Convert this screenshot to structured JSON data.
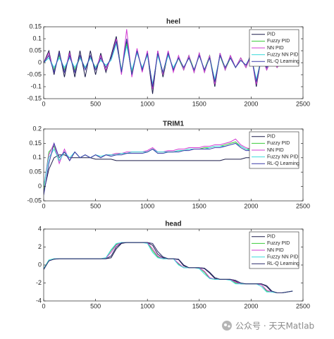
{
  "chart_data": [
    {
      "type": "line",
      "title": "heel",
      "legend": "upper right",
      "grid": false,
      "x": [
        0,
        50,
        100,
        150,
        200,
        250,
        300,
        350,
        400,
        450,
        500,
        550,
        600,
        650,
        700,
        750,
        800,
        850,
        900,
        950,
        1000,
        1050,
        1100,
        1150,
        1200,
        1250,
        1300,
        1350,
        1400,
        1450,
        1500,
        1550,
        1600,
        1650,
        1700,
        1750,
        1800,
        1850,
        1900,
        1950,
        2000,
        2050,
        2100,
        2150,
        2200,
        2250,
        2300,
        2350,
        2400
      ],
      "xlim": [
        0,
        2500
      ],
      "xticks": [
        0,
        500,
        1000,
        1500,
        2000,
        2500
      ],
      "ylim": [
        -0.15,
        0.15
      ],
      "yticks": [
        -0.15,
        -0.1,
        -0.05,
        0,
        0.05,
        0.1,
        0.15
      ],
      "series": [
        {
          "name": "PID",
          "color": "#1c1c4a",
          "values": [
            0,
            0.05,
            -0.05,
            0.05,
            -0.06,
            0.05,
            -0.06,
            0.05,
            -0.06,
            0.05,
            -0.05,
            0.04,
            -0.04,
            0.03,
            0.11,
            -0.04,
            0.09,
            -0.05,
            0.05,
            -0.03,
            0.04,
            -0.13,
            0.05,
            -0.06,
            0.04,
            -0.03,
            0.02,
            -0.03,
            0.03,
            -0.04,
            0.04,
            -0.04,
            0.03,
            -0.1,
            0.04,
            -0.03,
            0.03,
            -0.02,
            0.02,
            -0.02,
            0.04,
            -0.1,
            0.03,
            -0.03,
            0.02,
            -0.02,
            0.01,
            -0.01,
            0
          ]
        },
        {
          "name": "Fuzzy PID",
          "color": "#3ccc3c",
          "values": [
            0,
            0.03,
            -0.03,
            0.03,
            -0.03,
            0.03,
            -0.03,
            0.02,
            -0.02,
            0.02,
            -0.02,
            0.02,
            -0.02,
            0.02,
            0.09,
            -0.03,
            0.08,
            -0.04,
            0.05,
            -0.03,
            0.04,
            -0.1,
            0.04,
            -0.05,
            0.04,
            -0.03,
            0.02,
            -0.03,
            0.03,
            -0.03,
            0.03,
            -0.03,
            0.03,
            -0.08,
            0.03,
            -0.03,
            0.02,
            -0.02,
            0.02,
            -0.02,
            0.03,
            -0.08,
            0.03,
            -0.02,
            0.02,
            -0.02,
            0.01,
            -0.01,
            0
          ]
        },
        {
          "name": "NN PID",
          "color": "#d23cd2",
          "values": [
            0,
            0.04,
            -0.04,
            0.04,
            -0.04,
            0.04,
            -0.04,
            0.03,
            -0.03,
            0.03,
            -0.03,
            0.03,
            -0.03,
            0.02,
            0.1,
            -0.05,
            0.14,
            -0.06,
            0.06,
            -0.04,
            0.05,
            -0.11,
            0.05,
            -0.05,
            0.05,
            -0.04,
            0.03,
            -0.03,
            0.03,
            -0.04,
            0.04,
            -0.04,
            0.03,
            -0.09,
            0.04,
            -0.03,
            0.03,
            -0.02,
            0.02,
            -0.02,
            0.03,
            -0.09,
            0.03,
            -0.03,
            0.02,
            -0.02,
            0.01,
            -0.01,
            0
          ]
        },
        {
          "name": "Fuzzy NN PID",
          "color": "#3cdcdc",
          "values": [
            0,
            0.02,
            -0.02,
            0.02,
            -0.02,
            0.02,
            -0.02,
            0.02,
            -0.02,
            0.02,
            -0.02,
            0.01,
            -0.01,
            0.01,
            0.08,
            -0.03,
            0.07,
            -0.03,
            0.04,
            -0.02,
            0.03,
            -0.09,
            0.03,
            -0.04,
            0.03,
            -0.02,
            0.02,
            -0.02,
            0.02,
            -0.03,
            0.03,
            -0.03,
            0.02,
            -0.07,
            0.03,
            -0.02,
            0.02,
            -0.02,
            0.01,
            -0.01,
            0.03,
            -0.07,
            0.02,
            -0.02,
            0.01,
            -0.01,
            0.01,
            -0.01,
            0
          ]
        },
        {
          "name": "RL-Q Learning",
          "color": "#3a3aa8",
          "values": [
            0,
            0.03,
            -0.04,
            0.04,
            -0.04,
            0.03,
            -0.04,
            0.03,
            -0.03,
            0.03,
            -0.03,
            0.02,
            -0.02,
            0.02,
            0.09,
            -0.04,
            0.1,
            -0.05,
            0.05,
            -0.03,
            0.04,
            -0.1,
            0.04,
            -0.04,
            0.04,
            -0.03,
            0.02,
            -0.02,
            0.02,
            -0.03,
            0.03,
            -0.03,
            0.02,
            -0.08,
            0.03,
            -0.02,
            0.02,
            -0.02,
            0.01,
            -0.01,
            0.03,
            -0.08,
            0.02,
            -0.02,
            0.02,
            -0.01,
            0.01,
            -0.01,
            0
          ]
        }
      ]
    },
    {
      "type": "line",
      "title": "TRIM1",
      "legend": "upper right",
      "grid": false,
      "x": [
        0,
        50,
        100,
        150,
        200,
        250,
        300,
        350,
        400,
        450,
        500,
        550,
        600,
        650,
        700,
        750,
        800,
        850,
        900,
        950,
        1000,
        1050,
        1100,
        1150,
        1200,
        1250,
        1300,
        1350,
        1400,
        1450,
        1500,
        1550,
        1600,
        1650,
        1700,
        1750,
        1800,
        1850,
        1900,
        1950,
        2000,
        2050,
        2100,
        2150,
        2200,
        2250,
        2300,
        2350,
        2400
      ],
      "xlim": [
        0,
        2500
      ],
      "xticks": [
        0,
        500,
        1000,
        1500,
        2000,
        2500
      ],
      "ylim": [
        -0.05,
        0.2
      ],
      "yticks": [
        -0.05,
        0,
        0.05,
        0.1,
        0.15,
        0.2
      ],
      "series": [
        {
          "name": "PID",
          "color": "#1c1c4a",
          "values": [
            -0.02,
            0.06,
            0.1,
            0.11,
            0.11,
            0.1,
            0.1,
            0.1,
            0.1,
            0.1,
            0.095,
            0.095,
            0.095,
            0.095,
            0.09,
            0.09,
            0.09,
            0.09,
            0.09,
            0.09,
            0.09,
            0.09,
            0.09,
            0.09,
            0.09,
            0.09,
            0.09,
            0.09,
            0.09,
            0.09,
            0.09,
            0.09,
            0.09,
            0.09,
            0.09,
            0.095,
            0.095,
            0.095,
            0.095,
            0.1,
            0.1,
            0.1,
            0.1,
            0.1,
            0.1,
            0.1,
            0.1,
            0.1,
            0.1
          ]
        },
        {
          "name": "Fuzzy PID",
          "color": "#3ccc3c",
          "values": [
            -0.01,
            0.12,
            0.14,
            0.09,
            0.12,
            0.09,
            0.12,
            0.1,
            0.11,
            0.1,
            0.11,
            0.1,
            0.11,
            0.11,
            0.115,
            0.115,
            0.115,
            0.12,
            0.12,
            0.12,
            0.12,
            0.13,
            0.12,
            0.12,
            0.12,
            0.12,
            0.125,
            0.125,
            0.13,
            0.13,
            0.13,
            0.135,
            0.135,
            0.14,
            0.14,
            0.145,
            0.15,
            0.155,
            0.14,
            0.13,
            0.13,
            0.125,
            0.125,
            0.12,
            0.12,
            0.12,
            0.12,
            0.12,
            0.12
          ]
        },
        {
          "name": "NN PID",
          "color": "#d23cd2",
          "values": [
            0,
            0.11,
            0.15,
            0.08,
            0.13,
            0.09,
            0.12,
            0.1,
            0.11,
            0.1,
            0.11,
            0.1,
            0.11,
            0.11,
            0.115,
            0.115,
            0.12,
            0.12,
            0.12,
            0.12,
            0.125,
            0.135,
            0.12,
            0.12,
            0.125,
            0.125,
            0.13,
            0.13,
            0.135,
            0.135,
            0.135,
            0.14,
            0.14,
            0.145,
            0.145,
            0.15,
            0.155,
            0.165,
            0.145,
            0.135,
            0.13,
            0.13,
            0.125,
            0.125,
            0.12,
            0.12,
            0.12,
            0.12,
            0.12
          ]
        },
        {
          "name": "Fuzzy NN PID",
          "color": "#3cdcdc",
          "values": [
            0,
            0.1,
            0.13,
            0.09,
            0.12,
            0.1,
            0.12,
            0.1,
            0.11,
            0.1,
            0.11,
            0.105,
            0.11,
            0.11,
            0.11,
            0.115,
            0.115,
            0.12,
            0.12,
            0.12,
            0.12,
            0.13,
            0.12,
            0.12,
            0.12,
            0.12,
            0.125,
            0.125,
            0.13,
            0.13,
            0.13,
            0.13,
            0.135,
            0.14,
            0.14,
            0.14,
            0.145,
            0.15,
            0.14,
            0.13,
            0.125,
            0.125,
            0.12,
            0.12,
            0.12,
            0.12,
            0.115,
            0.115,
            0.115
          ]
        },
        {
          "name": "RL-Q Learning",
          "color": "#3a3aa8",
          "values": [
            -0.03,
            0.08,
            0.15,
            0.1,
            0.12,
            0.09,
            0.12,
            0.1,
            0.11,
            0.1,
            0.11,
            0.1,
            0.11,
            0.105,
            0.11,
            0.11,
            0.115,
            0.115,
            0.115,
            0.115,
            0.12,
            0.13,
            0.115,
            0.115,
            0.12,
            0.12,
            0.12,
            0.125,
            0.125,
            0.13,
            0.13,
            0.13,
            0.13,
            0.135,
            0.135,
            0.14,
            0.145,
            0.15,
            0.135,
            0.125,
            0.125,
            0.12,
            0.12,
            0.115,
            0.115,
            0.115,
            0.11,
            0.11,
            0.11
          ]
        }
      ]
    },
    {
      "type": "line",
      "title": "head",
      "legend": "upper right",
      "grid": false,
      "x": [
        0,
        50,
        100,
        150,
        200,
        250,
        300,
        350,
        400,
        450,
        500,
        550,
        600,
        650,
        700,
        750,
        800,
        850,
        900,
        950,
        1000,
        1050,
        1100,
        1150,
        1200,
        1250,
        1300,
        1350,
        1400,
        1450,
        1500,
        1550,
        1600,
        1650,
        1700,
        1750,
        1800,
        1850,
        1900,
        1950,
        2000,
        2050,
        2100,
        2150,
        2200,
        2250,
        2300,
        2350,
        2400
      ],
      "xlim": [
        0,
        2500
      ],
      "xticks": [
        0,
        500,
        1000,
        1500,
        2000,
        2500
      ],
      "ylim": [
        -4,
        4
      ],
      "yticks": [
        -4,
        -2,
        0,
        2,
        4
      ],
      "series": [
        {
          "name": "PID",
          "color": "#1c1c4a",
          "values": [
            -0.5,
            0.5,
            0.65,
            0.7,
            0.7,
            0.7,
            0.7,
            0.7,
            0.7,
            0.7,
            0.7,
            0.7,
            0.7,
            0.8,
            1.8,
            2.4,
            2.5,
            2.5,
            2.5,
            2.5,
            2.5,
            2.2,
            1.2,
            0.8,
            0.7,
            0.7,
            0.6,
            -0.1,
            -0.3,
            -0.3,
            -0.3,
            -0.4,
            -0.9,
            -1.5,
            -1.6,
            -1.6,
            -1.6,
            -1.8,
            -2.1,
            -2.1,
            -2.1,
            -2.1,
            -2.1,
            -2.4,
            -3.0,
            -3.1,
            -3.1,
            -3.0,
            -2.9
          ]
        },
        {
          "name": "Fuzzy PID",
          "color": "#3ccc3c",
          "values": [
            -0.4,
            0.55,
            0.7,
            0.7,
            0.7,
            0.7,
            0.7,
            0.7,
            0.7,
            0.7,
            0.7,
            0.7,
            0.8,
            1.6,
            2.3,
            2.5,
            2.5,
            2.5,
            2.5,
            2.5,
            2.5,
            1.6,
            0.9,
            0.7,
            0.7,
            0.7,
            0.1,
            -0.3,
            -0.3,
            -0.3,
            -0.3,
            -0.8,
            -1.5,
            -1.6,
            -1.6,
            -1.6,
            -1.6,
            -2.0,
            -2.1,
            -2.1,
            -2.1,
            -2.1,
            -2.2,
            -2.9,
            -3.0,
            -3.1,
            -3.1,
            -3.0,
            -2.9
          ]
        },
        {
          "name": "NN PID",
          "color": "#d23cd2",
          "values": [
            -0.4,
            0.5,
            0.7,
            0.7,
            0.7,
            0.7,
            0.7,
            0.7,
            0.7,
            0.7,
            0.7,
            0.7,
            0.75,
            1.4,
            2.2,
            2.5,
            2.5,
            2.5,
            2.5,
            2.5,
            2.5,
            1.8,
            1.0,
            0.7,
            0.7,
            0.7,
            0.2,
            -0.3,
            -0.3,
            -0.3,
            -0.3,
            -0.7,
            -1.4,
            -1.6,
            -1.6,
            -1.6,
            -1.6,
            -1.9,
            -2.1,
            -2.1,
            -2.1,
            -2.1,
            -2.2,
            -2.8,
            -3.0,
            -3.1,
            -3.1,
            -3.0,
            -2.9
          ]
        },
        {
          "name": "Fuzzy NN PID",
          "color": "#3cdcdc",
          "values": [
            -0.4,
            0.55,
            0.7,
            0.7,
            0.7,
            0.7,
            0.7,
            0.7,
            0.7,
            0.7,
            0.7,
            0.7,
            0.8,
            1.7,
            2.4,
            2.5,
            2.5,
            2.5,
            2.5,
            2.5,
            2.4,
            1.4,
            0.8,
            0.7,
            0.7,
            0.7,
            0.0,
            -0.3,
            -0.3,
            -0.3,
            -0.4,
            -1.0,
            -1.5,
            -1.6,
            -1.6,
            -1.6,
            -1.7,
            -2.1,
            -2.1,
            -2.1,
            -2.1,
            -2.1,
            -2.4,
            -3.0,
            -3.0,
            -3.1,
            -3.1,
            -3.0,
            -2.9
          ]
        },
        {
          "name": "RL-Q Learning",
          "color": "#2a2a6a",
          "values": [
            -0.5,
            0.45,
            0.65,
            0.7,
            0.7,
            0.7,
            0.7,
            0.7,
            0.7,
            0.7,
            0.7,
            0.7,
            0.7,
            1.0,
            2.0,
            2.45,
            2.5,
            2.5,
            2.5,
            2.5,
            2.5,
            2.4,
            1.5,
            0.9,
            0.7,
            0.7,
            0.65,
            0.0,
            -0.3,
            -0.3,
            -0.3,
            -0.35,
            -0.8,
            -1.4,
            -1.6,
            -1.6,
            -1.6,
            -1.7,
            -2.0,
            -2.1,
            -2.1,
            -2.1,
            -2.1,
            -2.3,
            -2.9,
            -3.1,
            -3.1,
            -3.0,
            -2.9
          ]
        }
      ]
    }
  ],
  "watermark": "公众号 · 天天Matlab"
}
